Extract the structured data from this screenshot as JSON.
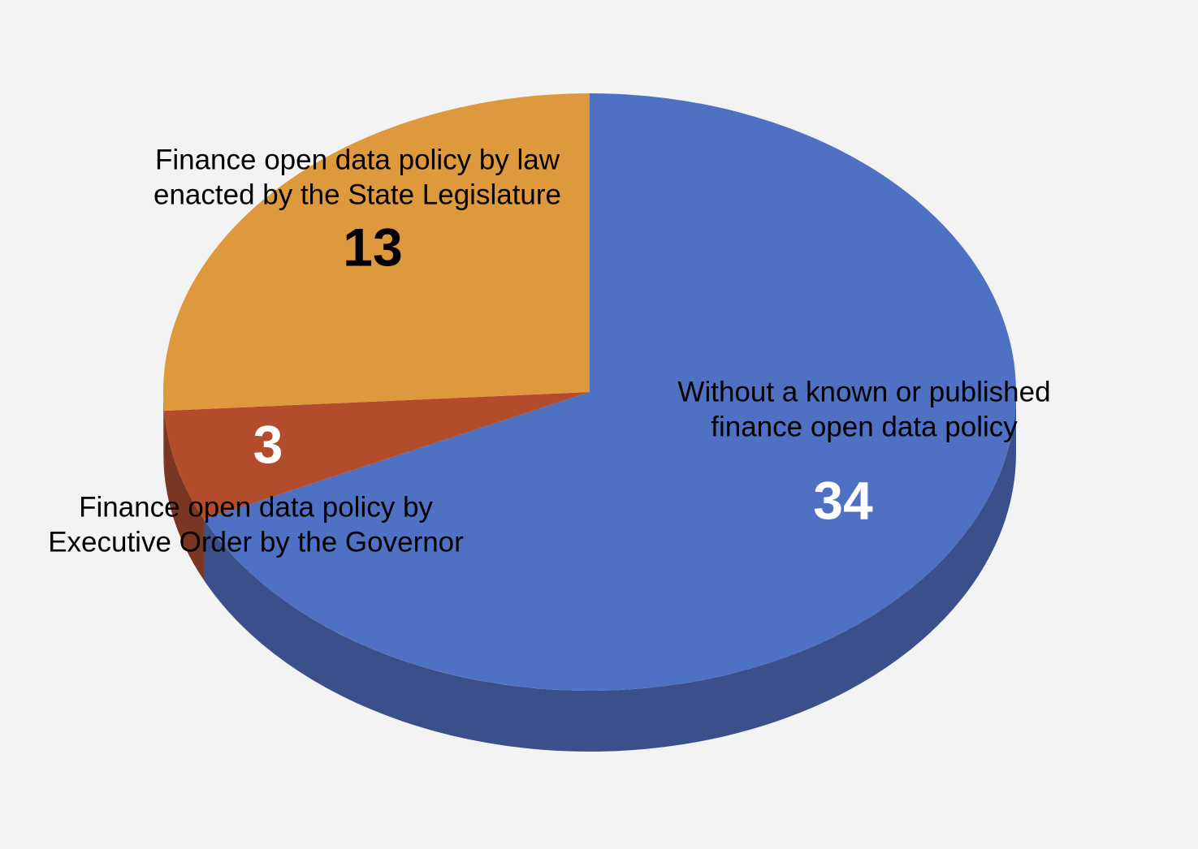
{
  "chart_data": {
    "type": "pie",
    "three_d": true,
    "legend": "none",
    "slices": [
      {
        "label": "Without a known or published finance open data policy",
        "label_lines": [
          "Without a known or published",
          "finance open data policy"
        ],
        "value": 34,
        "color": "#4e71c3",
        "side_color": "#3b4f8a",
        "value_color": "#ffffff"
      },
      {
        "label": "Finance open data policy by Executive Order by the Governor",
        "label_lines": [
          "Finance open data policy by",
          "Executive Order by the Governor"
        ],
        "value": 3,
        "color": "#b34c2c",
        "side_color": "#7a3620",
        "value_color": "#ffffff"
      },
      {
        "label": "Finance open data policy by law enacted by the State Legislature",
        "label_lines": [
          "Finance open data policy by law",
          "enacted by the State Legislature"
        ],
        "value": 13,
        "color": "#de993c",
        "side_color": "#a5702b",
        "value_color": "#000000"
      }
    ]
  }
}
